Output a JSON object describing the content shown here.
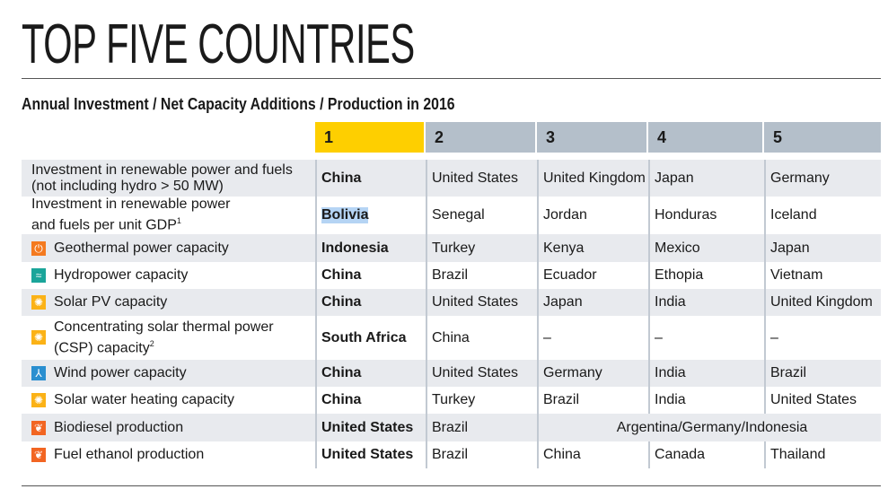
{
  "title": "TOP FIVE COUNTRIES",
  "subtitle": "Annual Investment / Net Capacity Additions / Production in 2016",
  "columns": [
    "1",
    "2",
    "3",
    "4",
    "5"
  ],
  "rows": [
    {
      "label": "Investment in renewable power and fuels",
      "label2": "(not including hydro > 50 MW)",
      "icon": "none",
      "values": [
        "China",
        "United States",
        "United Kingdom",
        "Japan",
        "Germany"
      ]
    },
    {
      "label": "Investment in renewable power",
      "label2": "and fuels per unit GDP",
      "sup": "1",
      "icon": "none",
      "values": [
        "Bolivia",
        "Senegal",
        "Jordan",
        "Honduras",
        "Iceland"
      ]
    },
    {
      "label": "Geothermal power capacity",
      "icon": "geothermal-icon",
      "values": [
        "Indonesia",
        "Turkey",
        "Kenya",
        "Mexico",
        "Japan"
      ]
    },
    {
      "label": "Hydropower capacity",
      "icon": "hydropower-icon",
      "values": [
        "China",
        "Brazil",
        "Ecuador",
        "Ethopia",
        "Vietnam"
      ]
    },
    {
      "label": "Solar PV capacity",
      "icon": "solar-icon",
      "values": [
        "China",
        "United States",
        "Japan",
        "India",
        "United Kingdom"
      ]
    },
    {
      "label": "Concentrating solar thermal power",
      "label2": "(CSP) capacity",
      "sup": "2",
      "icon": "solar-icon",
      "values": [
        "South Africa",
        "China",
        "–",
        "–",
        "–"
      ]
    },
    {
      "label": "Wind power capacity",
      "icon": "wind-icon",
      "values": [
        "China",
        "United States",
        "Germany",
        "India",
        "Brazil"
      ]
    },
    {
      "label": "Solar water heating capacity",
      "icon": "solar-icon",
      "values": [
        "China",
        "Turkey",
        "Brazil",
        "India",
        "United States"
      ]
    },
    {
      "label": "Biodiesel production",
      "icon": "biofuel-icon",
      "values": [
        "United States",
        "Brazil",
        "Argentina/Germany/Indonesia"
      ]
    },
    {
      "label": "Fuel ethanol production",
      "icon": "biofuel-icon",
      "values": [
        "United States",
        "Brazil",
        "China",
        "Canada",
        "Thailand"
      ]
    }
  ],
  "colors": {
    "rank1": "#fecf00",
    "rank_other": "#b4bfca",
    "geothermal": "#f47a20",
    "hydro": "#1aa59a",
    "solar": "#fbb216",
    "wind": "#2a8fd0",
    "biofuel": "#f26522"
  }
}
